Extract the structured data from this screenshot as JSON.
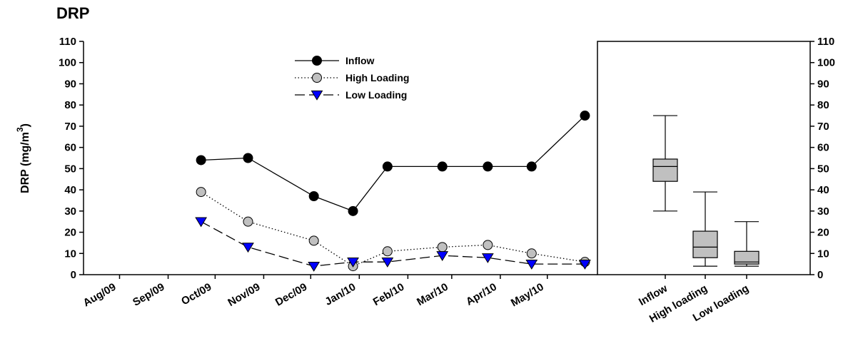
{
  "chart_data": [
    {
      "type": "line",
      "title": "DRP",
      "ylabel": "DRP (mg/m",
      "ylabel_superscript": "3",
      "ylabel_close": ")",
      "ylim": [
        0,
        110
      ],
      "y_ticks": [
        0,
        10,
        20,
        30,
        40,
        50,
        60,
        70,
        80,
        90,
        100,
        110
      ],
      "x_ticks": [
        "Aug/09",
        "Sep/09",
        "Oct/09",
        "Nov/09",
        "Dec/09",
        "Jan/10",
        "Feb/10",
        "Mar/10",
        "Apr/10",
        "May/10"
      ],
      "x": [
        "2009-09-22",
        "2009-10-22",
        "2009-12-03",
        "2009-12-28",
        "2010-01-19",
        "2010-02-23",
        "2010-03-24",
        "2010-04-21",
        "2010-05-25"
      ],
      "legend_position": "top-center",
      "grid": false,
      "series": [
        {
          "name": "Inflow",
          "marker": "circle",
          "color": "#000000",
          "line": "solid",
          "values": [
            54,
            55,
            37,
            30,
            51,
            51,
            51,
            51,
            75
          ]
        },
        {
          "name": "High Loading",
          "marker": "circle",
          "color": "#c0c0c0",
          "line": "dotted",
          "values": [
            39,
            25,
            16,
            4,
            11,
            13,
            14,
            10,
            6
          ]
        },
        {
          "name": "Low Loading",
          "marker": "triangle-down",
          "color": "#0000ff",
          "line": "dashed",
          "values": [
            25,
            13,
            4,
            6,
            6,
            9,
            8,
            5,
            5
          ]
        }
      ]
    },
    {
      "type": "box",
      "categories": [
        "Inflow",
        "High loading",
        "Low loading"
      ],
      "ylim": [
        0,
        110
      ],
      "y_ticks": [
        0,
        10,
        20,
        30,
        40,
        50,
        60,
        70,
        80,
        90,
        100,
        110
      ],
      "box_color": "#c0c0c0",
      "boxes": [
        {
          "min": 30,
          "q1": 44,
          "median": 51,
          "q3": 54.5,
          "max": 75
        },
        {
          "min": 4,
          "q1": 8,
          "median": 13,
          "q3": 20.5,
          "max": 39
        },
        {
          "min": 4,
          "q1": 5,
          "median": 6,
          "q3": 11,
          "max": 25
        }
      ]
    }
  ]
}
